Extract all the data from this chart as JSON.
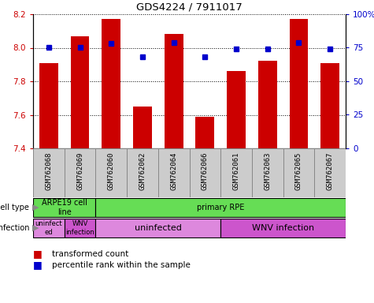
{
  "title": "GDS4224 / 7911017",
  "samples": [
    "GSM762068",
    "GSM762069",
    "GSM762060",
    "GSM762062",
    "GSM762064",
    "GSM762066",
    "GSM762061",
    "GSM762063",
    "GSM762065",
    "GSM762067"
  ],
  "transformed_counts": [
    7.91,
    8.07,
    8.17,
    7.65,
    8.08,
    7.59,
    7.86,
    7.92,
    8.17,
    7.91
  ],
  "percentile_ranks": [
    75,
    75,
    78,
    68,
    79,
    68,
    74,
    74,
    79,
    74
  ],
  "ylim_left": [
    7.4,
    8.2
  ],
  "ylim_right": [
    0,
    100
  ],
  "yticks_left": [
    7.4,
    7.6,
    7.8,
    8.0,
    8.2
  ],
  "yticks_right": [
    0,
    25,
    50,
    75,
    100
  ],
  "bar_color": "#cc0000",
  "dot_color": "#0000cc",
  "cell_type_row": [
    {
      "label": "ARPE19 cell\nline",
      "start": 0,
      "end": 2,
      "color": "#66dd55"
    },
    {
      "label": "primary RPE",
      "start": 2,
      "end": 10,
      "color": "#66dd55"
    }
  ],
  "infection_row": [
    {
      "label": "uninfect\ned",
      "start": 0,
      "end": 1,
      "color": "#dd88dd"
    },
    {
      "label": "WNV\ninfection",
      "start": 1,
      "end": 2,
      "color": "#cc55cc"
    },
    {
      "label": "uninfected",
      "start": 2,
      "end": 6,
      "color": "#dd88dd"
    },
    {
      "label": "WNV infection",
      "start": 6,
      "end": 10,
      "color": "#cc55cc"
    }
  ],
  "left_tick_color": "#cc0000",
  "right_tick_color": "#0000cc",
  "sample_bg_color": "#cccccc",
  "legend_bar_color": "#cc0000",
  "legend_dot_color": "#0000cc"
}
